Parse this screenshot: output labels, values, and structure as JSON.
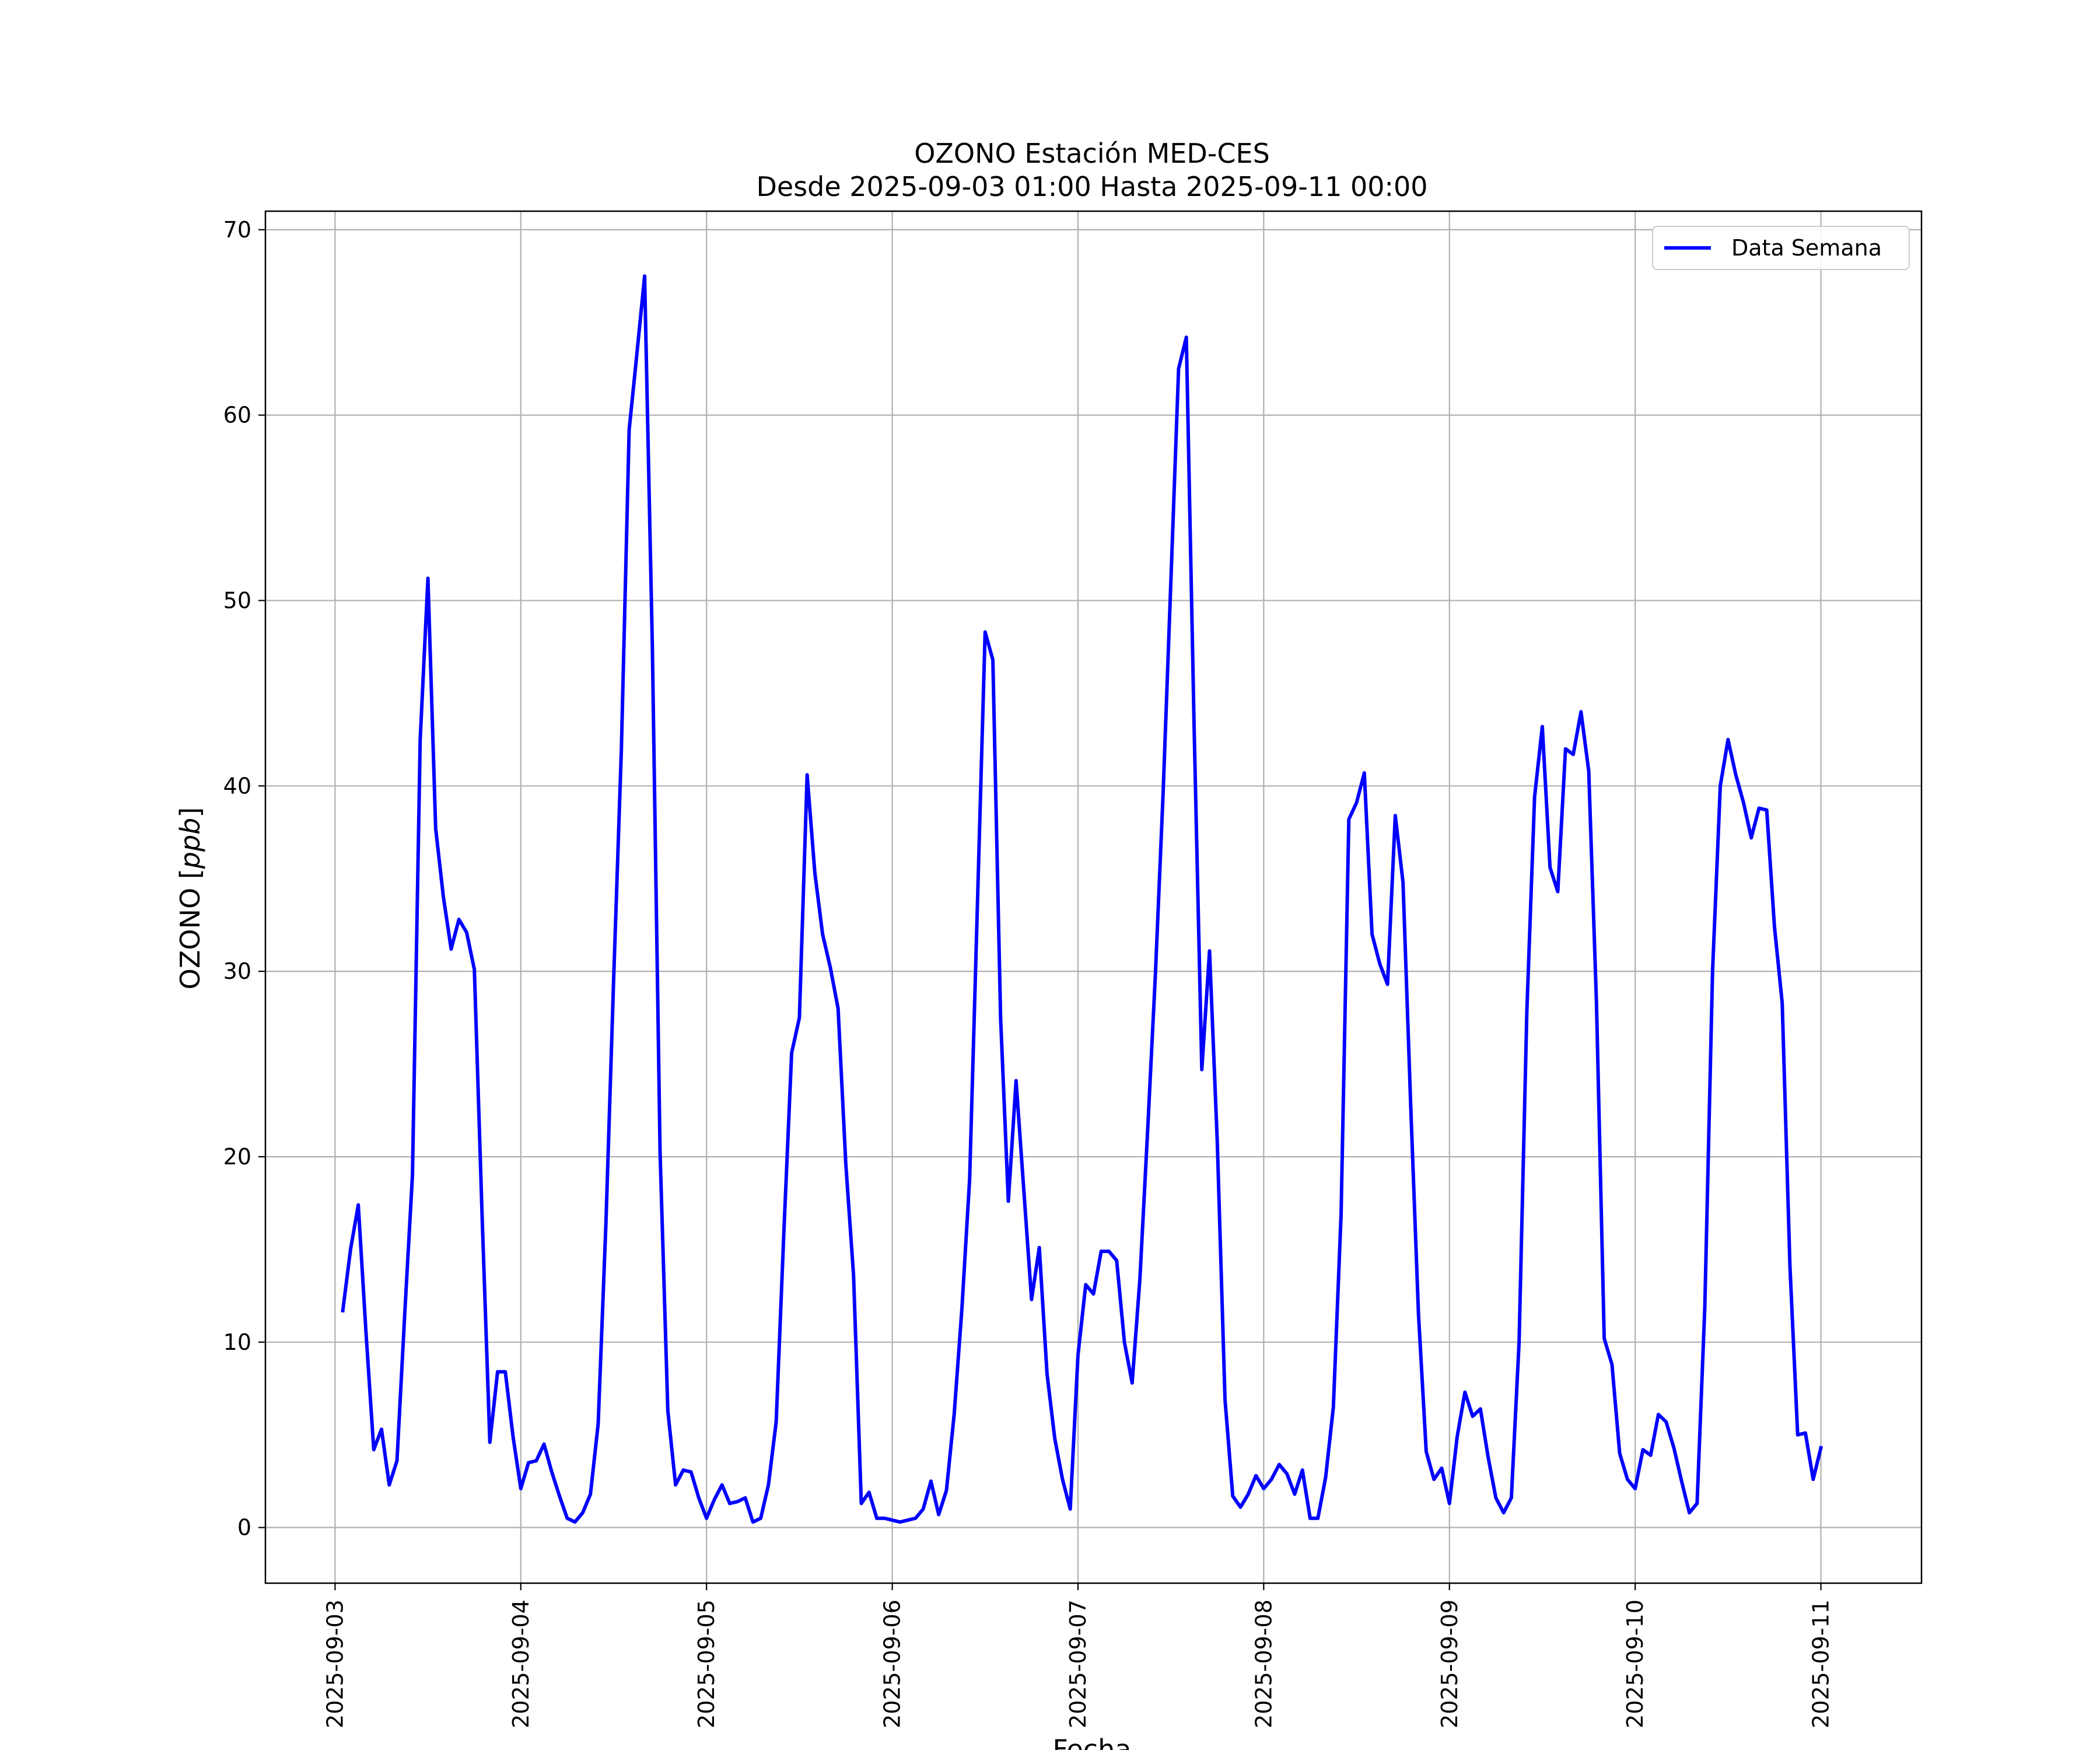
{
  "chart_data": {
    "type": "line",
    "title": "OZONO Estación MED-CES",
    "subtitle": "Desde 2025-09-03 01:00 Hasta 2025-09-11 00:00",
    "xlabel": "Fecha",
    "ylabel": "OZONO [ppb]",
    "ylabel_parts": {
      "prefix": "OZONO [",
      "italic": "ppb",
      "suffix": "]"
    },
    "x_ticks": [
      "2025-09-03",
      "2025-09-04",
      "2025-09-05",
      "2025-09-06",
      "2025-09-07",
      "2025-09-08",
      "2025-09-09",
      "2025-09-10",
      "2025-09-11"
    ],
    "y_ticks": [
      "0",
      "10",
      "20",
      "30",
      "40",
      "50",
      "60",
      "70"
    ],
    "xlim": [
      "2025-09-02 15:00",
      "2025-09-11 13:00"
    ],
    "ylim": [
      -3,
      71
    ],
    "grid": true,
    "legend_position": "top-right",
    "colors": {
      "series": "#0000ff",
      "grid": "#b0b0b0",
      "axes": "#000000",
      "background": "#ffffff"
    },
    "series": [
      {
        "name": "Data Semana",
        "start": "2025-09-03 01:00",
        "interval_hours": 1,
        "values": [
          11.7,
          15.0,
          17.4,
          10.5,
          4.2,
          5.3,
          2.3,
          3.6,
          11.5,
          19.0,
          42.5,
          51.2,
          37.7,
          34.0,
          31.2,
          32.8,
          32.1,
          30.1,
          16.8,
          4.6,
          8.4,
          8.4,
          4.9,
          2.1,
          3.5,
          3.6,
          4.5,
          3.0,
          1.7,
          0.5,
          0.3,
          0.8,
          1.8,
          5.6,
          16.4,
          29.6,
          42.0,
          59.2,
          63.3,
          67.5,
          47.5,
          20.2,
          6.3,
          2.3,
          3.1,
          3.0,
          1.6,
          0.5,
          1.5,
          2.3,
          1.3,
          1.4,
          1.6,
          0.3,
          0.5,
          2.3,
          5.7,
          16.0,
          25.6,
          27.5,
          40.6,
          35.3,
          32.0,
          30.2,
          28.0,
          19.6,
          13.6,
          1.3,
          1.9,
          0.5,
          0.5,
          0.4,
          0.3,
          0.4,
          0.5,
          1.0,
          2.5,
          0.7,
          2.0,
          6.1,
          11.8,
          18.8,
          33.5,
          48.3,
          46.8,
          27.5,
          17.6,
          24.1,
          18.2,
          12.3,
          15.1,
          8.3,
          4.8,
          2.6,
          1.0,
          9.3,
          13.1,
          12.6,
          14.9,
          14.9,
          14.4,
          10.0,
          7.8,
          13.4,
          21.4,
          29.8,
          39.6,
          51.0,
          62.5,
          64.2,
          43.3,
          24.7,
          31.1,
          20.8,
          6.9,
          1.7,
          1.1,
          1.8,
          2.8,
          2.1,
          2.6,
          3.4,
          2.9,
          1.8,
          3.1,
          0.5,
          0.5,
          2.7,
          6.5,
          16.9,
          38.2,
          39.1,
          40.7,
          32.0,
          30.4,
          29.3,
          38.4,
          34.8,
          22.7,
          11.5,
          4.1,
          2.6,
          3.2,
          1.3,
          4.9,
          7.3,
          6.0,
          6.4,
          3.8,
          1.6,
          0.8,
          1.6,
          10.0,
          27.8,
          39.4,
          43.2,
          35.6,
          34.3,
          42.0,
          41.7,
          44.0,
          40.8,
          28.3,
          10.2,
          8.8,
          4.0,
          2.6,
          2.1,
          4.2,
          3.9,
          6.1,
          5.7,
          4.3,
          2.5,
          0.8,
          1.3,
          11.9,
          30.0,
          40.0,
          42.5,
          40.6,
          39.1,
          37.2,
          38.8,
          38.7,
          32.4,
          28.3,
          14.1,
          5.0,
          5.1,
          2.6,
          4.3
        ]
      }
    ]
  }
}
